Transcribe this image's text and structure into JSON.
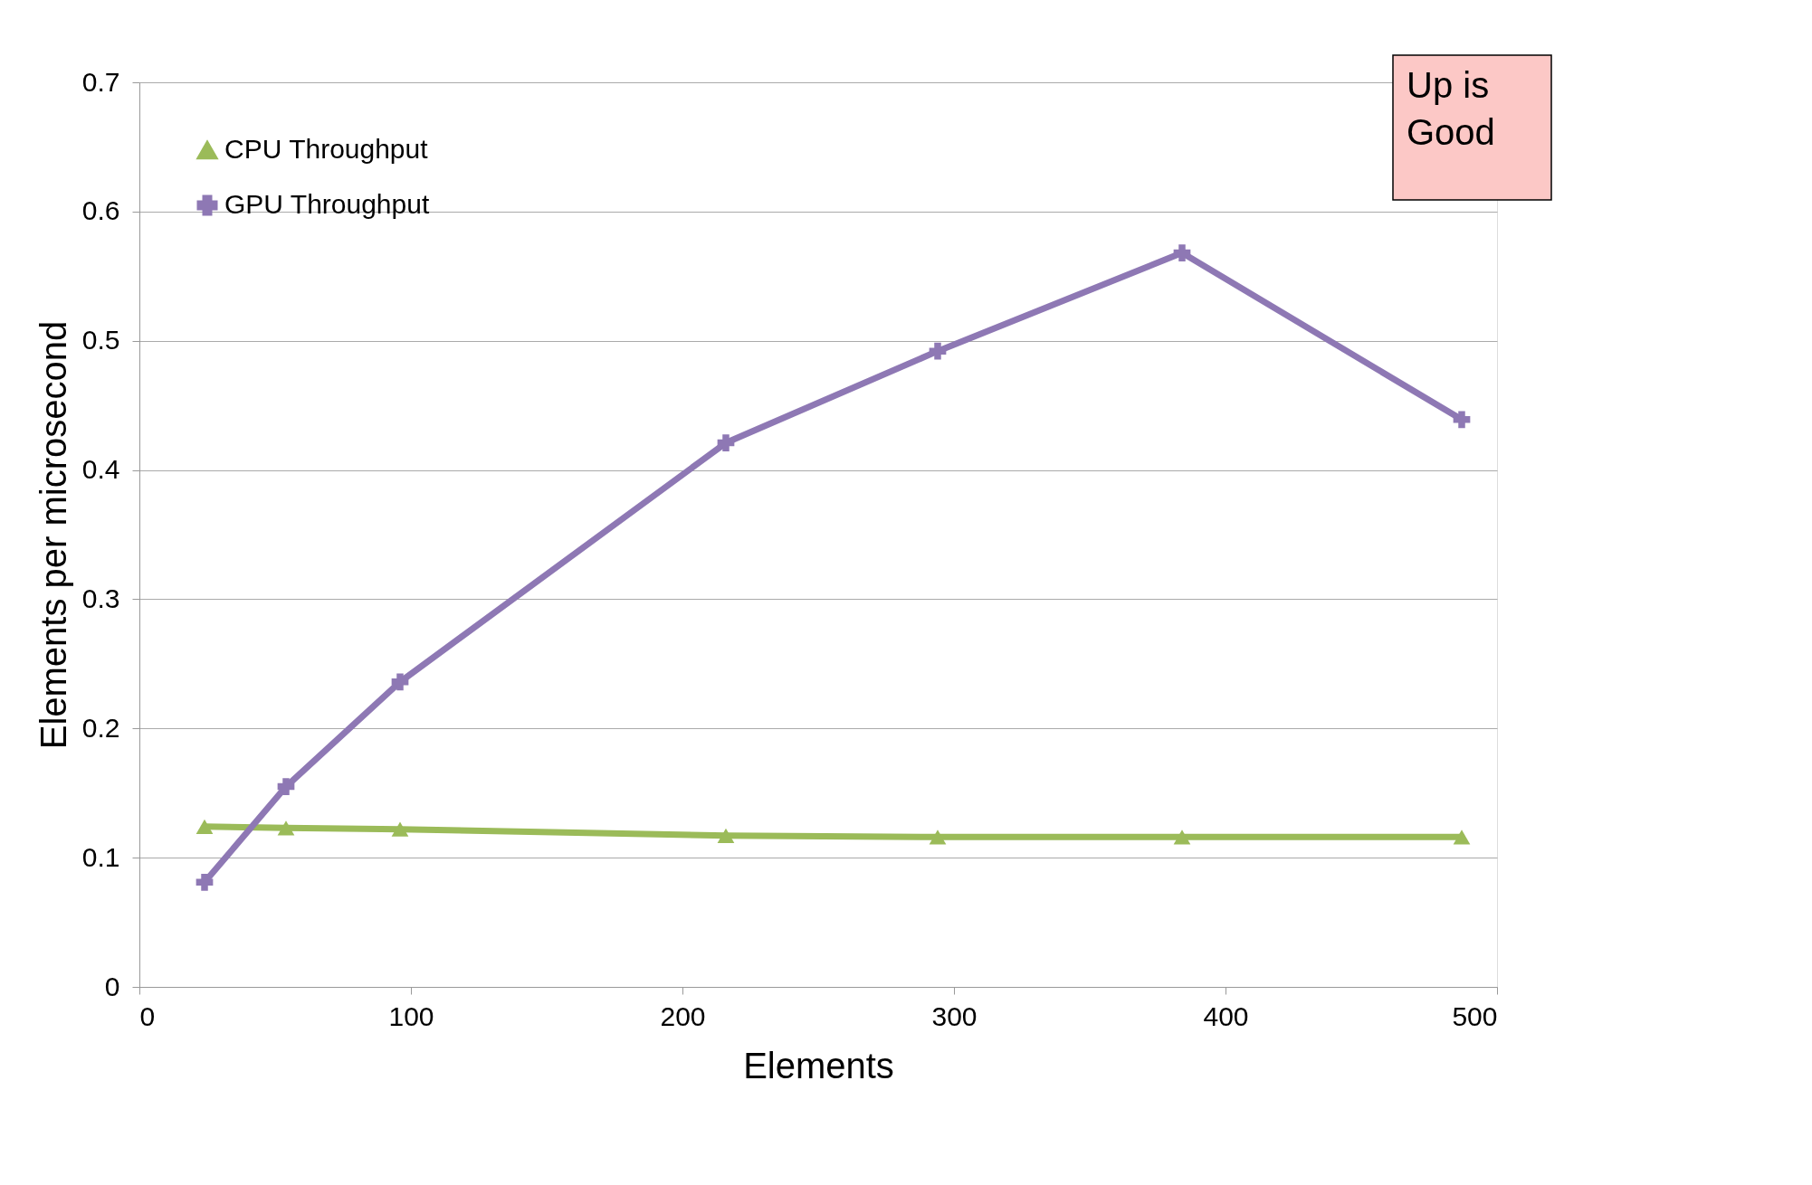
{
  "chart_data": {
    "type": "line",
    "xlabel": "Elements",
    "ylabel": "Elements per microsecond",
    "xlim": [
      0,
      500
    ],
    "xticks": [
      0,
      100,
      200,
      300,
      400,
      500
    ],
    "ylim": [
      0,
      0.7
    ],
    "yticks": [
      0,
      0.1,
      0.2,
      0.3,
      0.4,
      0.5,
      0.6,
      0.7
    ],
    "grid": "y",
    "legend": "top left",
    "series": [
      {
        "name": "CPU Throughput",
        "color": "#9bbb59",
        "marker": "triangle",
        "x": [
          24,
          54,
          96,
          216,
          294,
          384,
          487
        ],
        "values": [
          0.124,
          0.123,
          0.122,
          0.117,
          0.116,
          0.116,
          0.116
        ]
      },
      {
        "name": "GPU Throughput",
        "color": "#8e78b4",
        "marker": "cross",
        "x": [
          24,
          54,
          96,
          216,
          294,
          384,
          487
        ],
        "values": [
          0.081,
          0.155,
          0.236,
          0.421,
          0.492,
          0.568,
          0.439
        ]
      }
    ],
    "annotations": [
      "Up is Good"
    ]
  }
}
